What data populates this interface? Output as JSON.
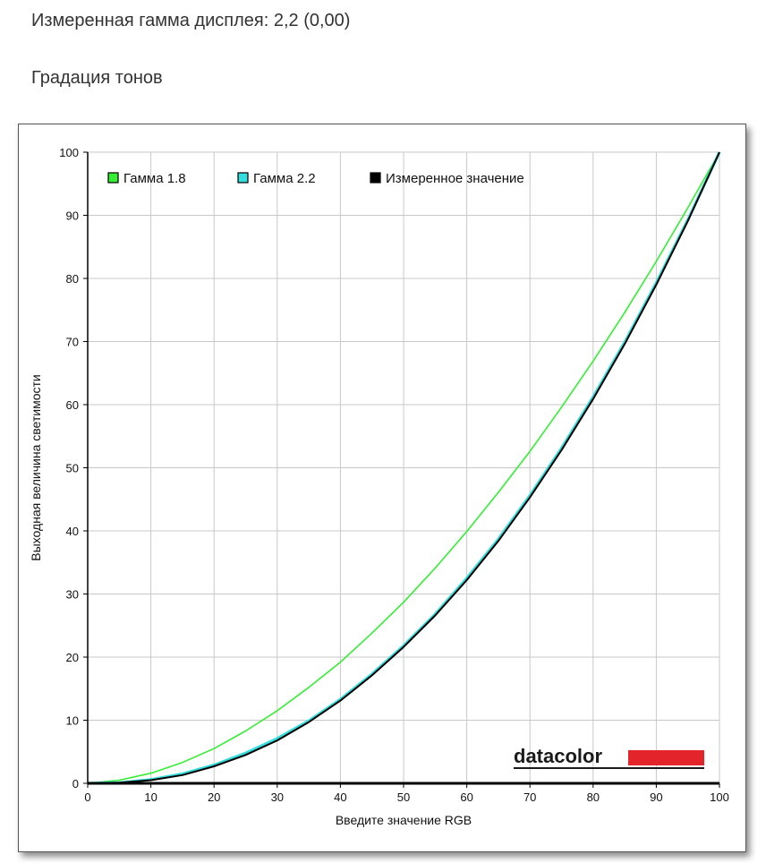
{
  "header": {
    "measured_gamma": "Измеренная гамма дисплея: 2,2 (0,00)",
    "section_title": "Градация тонов"
  },
  "logo": {
    "text": "datacolor",
    "bar_color": "#e3242b"
  },
  "chart_data": {
    "type": "line",
    "title": "",
    "xlabel": "Введите значение RGB",
    "ylabel": "Выходная величина светимости",
    "xlim": [
      0,
      100
    ],
    "ylim": [
      0,
      100
    ],
    "xticks": [
      "0",
      "10",
      "20",
      "30",
      "40",
      "50",
      "60",
      "70",
      "80",
      "90",
      "100"
    ],
    "yticks": [
      "0",
      "10",
      "20",
      "30",
      "40",
      "50",
      "60",
      "70",
      "80",
      "90",
      "100"
    ],
    "grid": true,
    "legend_position": "top-left",
    "x": [
      0,
      5,
      10,
      15,
      20,
      25,
      30,
      35,
      40,
      45,
      50,
      55,
      60,
      65,
      70,
      75,
      80,
      85,
      90,
      95,
      100
    ],
    "series": [
      {
        "name": "Гамма 1.8",
        "color": "#33ee33",
        "values": [
          0,
          0.5,
          1.6,
          3.3,
          5.5,
          8.3,
          11.5,
          15.2,
          19.2,
          23.8,
          28.7,
          34.1,
          39.9,
          46.1,
          52.6,
          59.6,
          66.9,
          74.6,
          82.7,
          91.2,
          100
        ]
      },
      {
        "name": "Гамма 2.2",
        "color": "#33dddd",
        "values": [
          0,
          0.1,
          0.6,
          1.5,
          2.9,
          4.8,
          7.1,
          9.9,
          13.3,
          17.3,
          21.8,
          26.8,
          32.5,
          38.7,
          45.6,
          53.1,
          61.2,
          69.9,
          79.3,
          89.3,
          100
        ]
      },
      {
        "name": "Измеренное значение",
        "color": "#000000",
        "values": [
          0,
          0.1,
          0.5,
          1.3,
          2.7,
          4.5,
          6.8,
          9.7,
          13.1,
          17.1,
          21.6,
          26.6,
          32.2,
          38.4,
          45.3,
          52.8,
          60.9,
          69.6,
          79.0,
          89.1,
          100
        ]
      }
    ]
  }
}
